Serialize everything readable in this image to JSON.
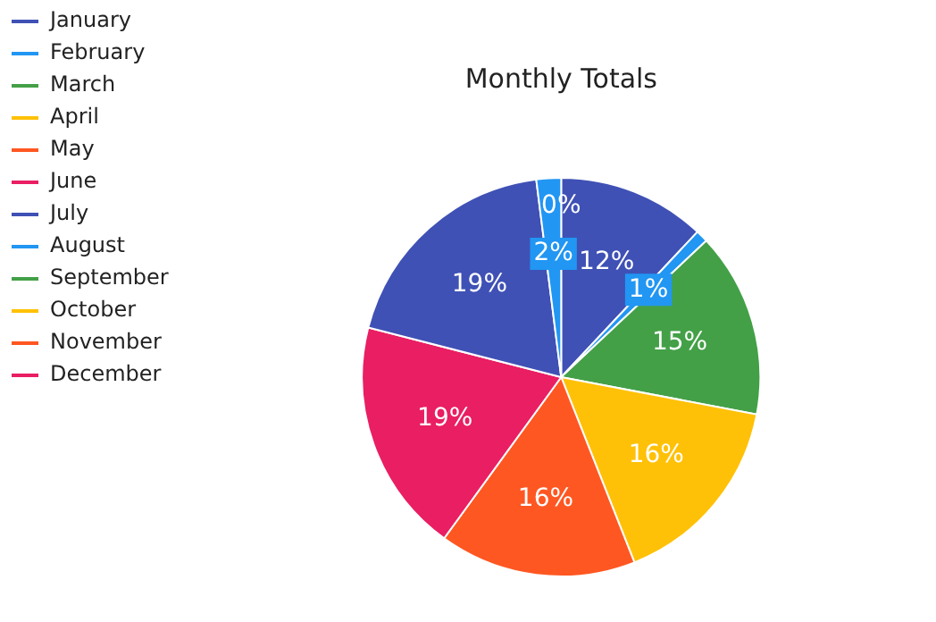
{
  "chart_data": {
    "type": "pie",
    "title": "Monthly Totals",
    "categories": [
      "January",
      "February",
      "March",
      "April",
      "May",
      "June",
      "July",
      "August",
      "September",
      "October",
      "November",
      "December"
    ],
    "values": [
      12,
      1,
      15,
      16,
      16,
      19,
      19,
      2,
      0,
      0,
      0,
      0
    ],
    "value_labels": [
      "12%",
      "1%",
      "15%",
      "16%",
      "16%",
      "19%",
      "19%",
      "2%",
      null,
      null,
      null,
      "0%"
    ],
    "colors": [
      "#3f51b5",
      "#2196f3",
      "#43a047",
      "#ffc107",
      "#ff5722",
      "#e91e63",
      "#3f51b5",
      "#2196f3",
      "#43a047",
      "#ffc107",
      "#ff5722",
      "#e91e63"
    ],
    "legend": "top left"
  }
}
